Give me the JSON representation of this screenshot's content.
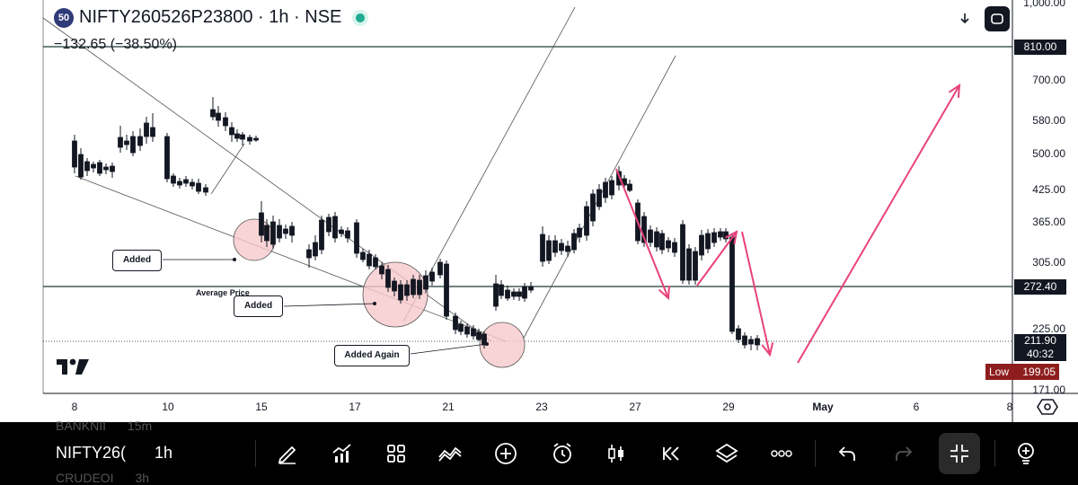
{
  "header": {
    "badge": "50",
    "symbol": "NIFTY260526P23800 · 1h · NSE",
    "change": "−132.65 (−38.50%)"
  },
  "price_axis": {
    "top_cut": "1,000.00",
    "ticks": [
      "700.00",
      "580.00",
      "500.00",
      "425.00",
      "365.00",
      "305.00",
      "225.00",
      "171.00"
    ],
    "tag_810": "810.00",
    "tag_272": "272.40",
    "current_price": "211.90",
    "countdown": "40:32",
    "low_label": "Low",
    "low_value": "199.05"
  },
  "time_axis": [
    "8",
    "10",
    "15",
    "17",
    "21",
    "23",
    "27",
    "29",
    "May",
    "6",
    "8"
  ],
  "annotations": {
    "added_1": "Added",
    "average_price": "Average Price",
    "added_2": "Added",
    "added_again": "Added Again"
  },
  "toolbar": {
    "watchlist_ghost_top": "BANKNII",
    "watchlist_ghost_top_tf": "15m",
    "symbol": "NIFTY26(",
    "timeframe": "1h",
    "watchlist_ghost_bottom": "CRUDEOI",
    "watchlist_ghost_bottom_tf": "3h"
  },
  "icons": {
    "download": "download-icon",
    "fullscreen": "fullscreen-icon",
    "settings": "gear-icon",
    "draw": "pencil-icon",
    "indicators": "indicators-icon",
    "layouts": "grid-icon",
    "compare": "compare-icon",
    "add": "plus-circle-icon",
    "alert": "alarm-icon",
    "chart_type": "candlestick-icon",
    "replay": "rewind-icon",
    "layers": "layers-icon",
    "more": "more-icon",
    "undo": "undo-icon",
    "redo": "redo-icon",
    "collapse": "collapse-icon",
    "idea": "lightbulb-icon"
  },
  "colors": {
    "accent_arrows": "#e8437a",
    "up_candle": "#ffffff",
    "down_candle": "#131722",
    "circle_fill": "#f6c9cc",
    "low_tag": "#8e1e1e"
  }
}
